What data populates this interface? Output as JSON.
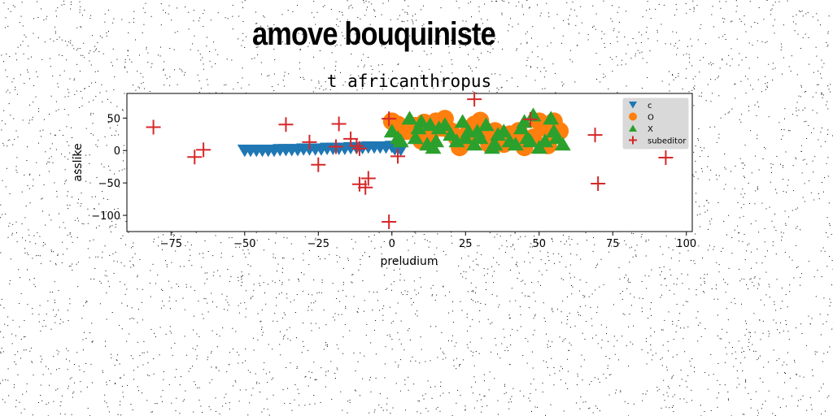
{
  "page": {
    "heading": "amove bouquiniste",
    "background": "#ffffff",
    "noise_color": "#000000"
  },
  "chart_data": {
    "type": "scatter",
    "title": "t africanthropus",
    "xlabel": "preludium",
    "ylabel": "asslike",
    "xlim": [
      -90,
      102
    ],
    "ylim": [
      -125,
      88
    ],
    "xticks": [
      -75,
      -50,
      -25,
      0,
      25,
      50,
      75,
      100
    ],
    "xtick_labels": [
      "−75",
      "−50",
      "−25",
      "0",
      "25",
      "50",
      "75",
      "100"
    ],
    "yticks": [
      -100,
      -50,
      0,
      50
    ],
    "ytick_labels": [
      "−100",
      "−50",
      "0",
      "50"
    ],
    "grid": false,
    "legend_position": "top-right",
    "series": [
      {
        "name": "c",
        "marker": "triangle-down",
        "color": "#1f77b4",
        "x": [
          -50,
          -48,
          -46,
          -44,
          -42,
          -40,
          -38,
          -36,
          -34,
          -32,
          -30,
          -28,
          -26,
          -24,
          -22,
          -20,
          -18,
          -16,
          -14,
          -12,
          -10,
          -8,
          -6,
          -4,
          -2,
          0,
          1,
          3
        ],
        "y": [
          0,
          0,
          0,
          0,
          0,
          0,
          1,
          1,
          1,
          1,
          2,
          2,
          2,
          2,
          3,
          3,
          3,
          3,
          4,
          4,
          4,
          5,
          5,
          5,
          5,
          6,
          2,
          1
        ]
      },
      {
        "name": "O",
        "marker": "circle",
        "color": "#ff7f0e",
        "x": [
          0,
          2,
          5,
          8,
          11,
          13,
          15,
          18,
          20,
          22,
          24,
          26,
          28,
          30,
          32,
          35,
          38,
          40,
          42,
          45,
          48,
          50,
          52,
          55,
          57,
          10,
          17,
          23,
          27,
          33,
          43,
          53
        ],
        "y": [
          45,
          40,
          30,
          38,
          43,
          25,
          45,
          49,
          30,
          20,
          15,
          28,
          40,
          46,
          20,
          30,
          10,
          25,
          15,
          5,
          20,
          45,
          35,
          45,
          30,
          15,
          35,
          5,
          22,
          10,
          30,
          8
        ]
      },
      {
        "name": "X",
        "marker": "triangle-up",
        "color": "#2ca02c",
        "x": [
          0,
          3,
          6,
          8,
          10,
          12,
          14,
          16,
          18,
          20,
          22,
          24,
          26,
          28,
          30,
          32,
          34,
          36,
          38,
          40,
          42,
          44,
          46,
          48,
          50,
          52,
          54,
          56,
          58,
          9,
          15,
          25,
          35,
          45,
          55,
          2,
          13,
          29,
          47
        ],
        "y": [
          30,
          15,
          50,
          20,
          45,
          10,
          5,
          35,
          40,
          25,
          15,
          45,
          30,
          10,
          20,
          40,
          5,
          25,
          30,
          15,
          10,
          35,
          20,
          55,
          5,
          15,
          50,
          20,
          10,
          35,
          15,
          20,
          10,
          45,
          30,
          20,
          40,
          30,
          15
        ]
      },
      {
        "name": "subeditor",
        "marker": "plus",
        "color": "#d62728",
        "x": [
          -81,
          -67,
          -64,
          -36,
          -28,
          -25,
          -18,
          -19,
          -14,
          -12,
          -11,
          -11,
          -9,
          -8,
          -1,
          -1,
          2,
          28,
          47,
          69,
          70,
          93
        ],
        "y": [
          36,
          -10,
          1,
          40,
          13,
          -22,
          41,
          6,
          18,
          7,
          3,
          -52,
          -57,
          -43,
          49,
          -110,
          -9,
          79,
          48,
          24,
          -51,
          -11
        ]
      }
    ]
  }
}
